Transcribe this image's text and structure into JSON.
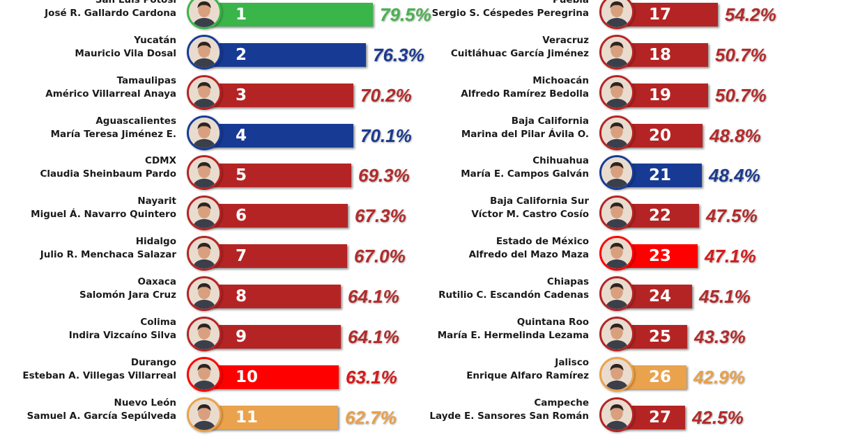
{
  "colors": {
    "red": "#b52424",
    "blue": "#173b94",
    "green": "#3ab54a",
    "orange": "#eba24c",
    "bright_red": "#ff0000"
  },
  "chart_data": {
    "type": "bar",
    "orientation": "horizontal",
    "columns": [
      [
        {
          "state": "San Luis Potosí",
          "governor": "José R. Gallardo Cardona",
          "rank": "1",
          "value": 79.5,
          "value_label": "79.5%",
          "party_color": "green",
          "icon": "governor-portrait-icon"
        },
        {
          "state": "Yucatán",
          "governor": "Mauricio Vila Dosal",
          "rank": "2",
          "value": 76.3,
          "value_label": "76.3%",
          "party_color": "blue",
          "icon": "governor-portrait-icon"
        },
        {
          "state": "Tamaulipas",
          "governor": "Américo Villarreal Anaya",
          "rank": "3",
          "value": 70.2,
          "value_label": "70.2%",
          "party_color": "red",
          "icon": "governor-portrait-icon"
        },
        {
          "state": "Aguascalientes",
          "governor": "María Teresa Jiménez E.",
          "rank": "4",
          "value": 70.1,
          "value_label": "70.1%",
          "party_color": "blue",
          "icon": "governor-portrait-icon"
        },
        {
          "state": "CDMX",
          "governor": "Claudia Sheinbaum Pardo",
          "rank": "5",
          "value": 69.3,
          "value_label": "69.3%",
          "party_color": "red",
          "icon": "governor-portrait-icon"
        },
        {
          "state": "Nayarit",
          "governor": "Miguel Á. Navarro Quintero",
          "rank": "6",
          "value": 67.3,
          "value_label": "67.3%",
          "party_color": "red",
          "icon": "governor-portrait-icon"
        },
        {
          "state": "Hidalgo",
          "governor": "Julio R. Menchaca Salazar",
          "rank": "7",
          "value": 67.0,
          "value_label": "67.0%",
          "party_color": "red",
          "icon": "governor-portrait-icon"
        },
        {
          "state": "Oaxaca",
          "governor": "Salomón Jara Cruz",
          "rank": "8",
          "value": 64.1,
          "value_label": "64.1%",
          "party_color": "red",
          "icon": "governor-portrait-icon"
        },
        {
          "state": "Colima",
          "governor": "Indira Vizcaíno Silva",
          "rank": "9",
          "value": 64.1,
          "value_label": "64.1%",
          "party_color": "red",
          "icon": "governor-portrait-icon"
        },
        {
          "state": "Durango",
          "governor": "Esteban A. Villegas Villarreal",
          "rank": "10",
          "value": 63.1,
          "value_label": "63.1%",
          "party_color": "bright_red",
          "icon": "governor-portrait-icon"
        },
        {
          "state": "Nuevo León",
          "governor": "Samuel A. García Sepúlveda",
          "rank": "11",
          "value": 62.7,
          "value_label": "62.7%",
          "party_color": "orange",
          "icon": "governor-portrait-icon"
        }
      ],
      [
        {
          "state": "Puebla",
          "governor": "Sergio S. Céspedes Peregrina",
          "rank": "17",
          "value": 54.2,
          "value_label": "54.2%",
          "party_color": "red",
          "icon": "governor-portrait-icon"
        },
        {
          "state": "Veracruz",
          "governor": "Cuitláhuac García Jiménez",
          "rank": "18",
          "value": 50.7,
          "value_label": "50.7%",
          "party_color": "red",
          "icon": "governor-portrait-icon"
        },
        {
          "state": "Michoacán",
          "governor": "Alfredo Ramírez Bedolla",
          "rank": "19",
          "value": 50.7,
          "value_label": "50.7%",
          "party_color": "red",
          "icon": "governor-portrait-icon"
        },
        {
          "state": "Baja California",
          "governor": "Marina del Pilar Ávila O.",
          "rank": "20",
          "value": 48.8,
          "value_label": "48.8%",
          "party_color": "red",
          "icon": "governor-portrait-icon"
        },
        {
          "state": "Chihuahua",
          "governor": "María E. Campos Galván",
          "rank": "21",
          "value": 48.4,
          "value_label": "48.4%",
          "party_color": "blue",
          "icon": "governor-portrait-icon"
        },
        {
          "state": "Baja California Sur",
          "governor": "Víctor M. Castro Cosío",
          "rank": "22",
          "value": 47.5,
          "value_label": "47.5%",
          "party_color": "red",
          "icon": "governor-portrait-icon"
        },
        {
          "state": "Estado de México",
          "governor": "Alfredo del Mazo Maza",
          "rank": "23",
          "value": 47.1,
          "value_label": "47.1%",
          "party_color": "bright_red",
          "icon": "governor-portrait-icon"
        },
        {
          "state": "Chiapas",
          "governor": "Rutilio C. Escandón Cadenas",
          "rank": "24",
          "value": 45.1,
          "value_label": "45.1%",
          "party_color": "red",
          "icon": "governor-portrait-icon"
        },
        {
          "state": "Quintana Roo",
          "governor": "María E. Hermelinda Lezama",
          "rank": "25",
          "value": 43.3,
          "value_label": "43.3%",
          "party_color": "red",
          "icon": "governor-portrait-icon"
        },
        {
          "state": "Jalisco",
          "governor": "Enrique Alfaro Ramírez",
          "rank": "26",
          "value": 42.9,
          "value_label": "42.9%",
          "party_color": "orange",
          "icon": "governor-portrait-icon"
        },
        {
          "state": "Campeche",
          "governor": "Layde E. Sansores San Román",
          "rank": "27",
          "value": 42.5,
          "value_label": "42.5%",
          "party_color": "red",
          "icon": "governor-portrait-icon"
        }
      ]
    ]
  }
}
